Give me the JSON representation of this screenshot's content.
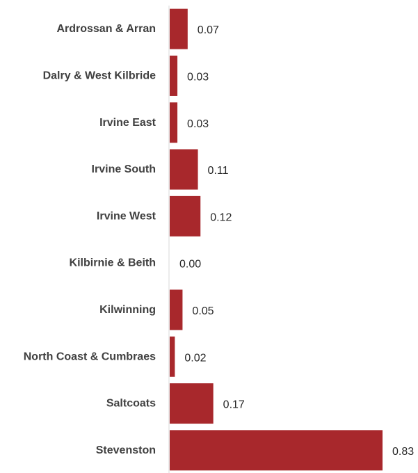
{
  "chart_data": {
    "type": "bar",
    "orientation": "horizontal",
    "title": "",
    "xlabel": "",
    "ylabel": "",
    "categories": [
      "Ardrossan & Arran",
      "Dalry & West Kilbride",
      "Irvine East",
      "Irvine South",
      "Irvine West",
      "Kilbirnie & Beith",
      "Kilwinning",
      "North Coast & Cumbraes",
      "Saltcoats",
      "Stevenston"
    ],
    "values": [
      0.07,
      0.03,
      0.03,
      0.11,
      0.12,
      0.0,
      0.05,
      0.02,
      0.17,
      0.83
    ],
    "value_labels": [
      "0.07",
      "0.03",
      "0.03",
      "0.11",
      "0.12",
      "0.00",
      "0.05",
      "0.02",
      "0.17",
      "0.83"
    ],
    "xlim": [
      0,
      0.83
    ],
    "grid": false,
    "legend": "none",
    "bar_color": "#a8282c",
    "axis_color": "#d9d9d9"
  }
}
